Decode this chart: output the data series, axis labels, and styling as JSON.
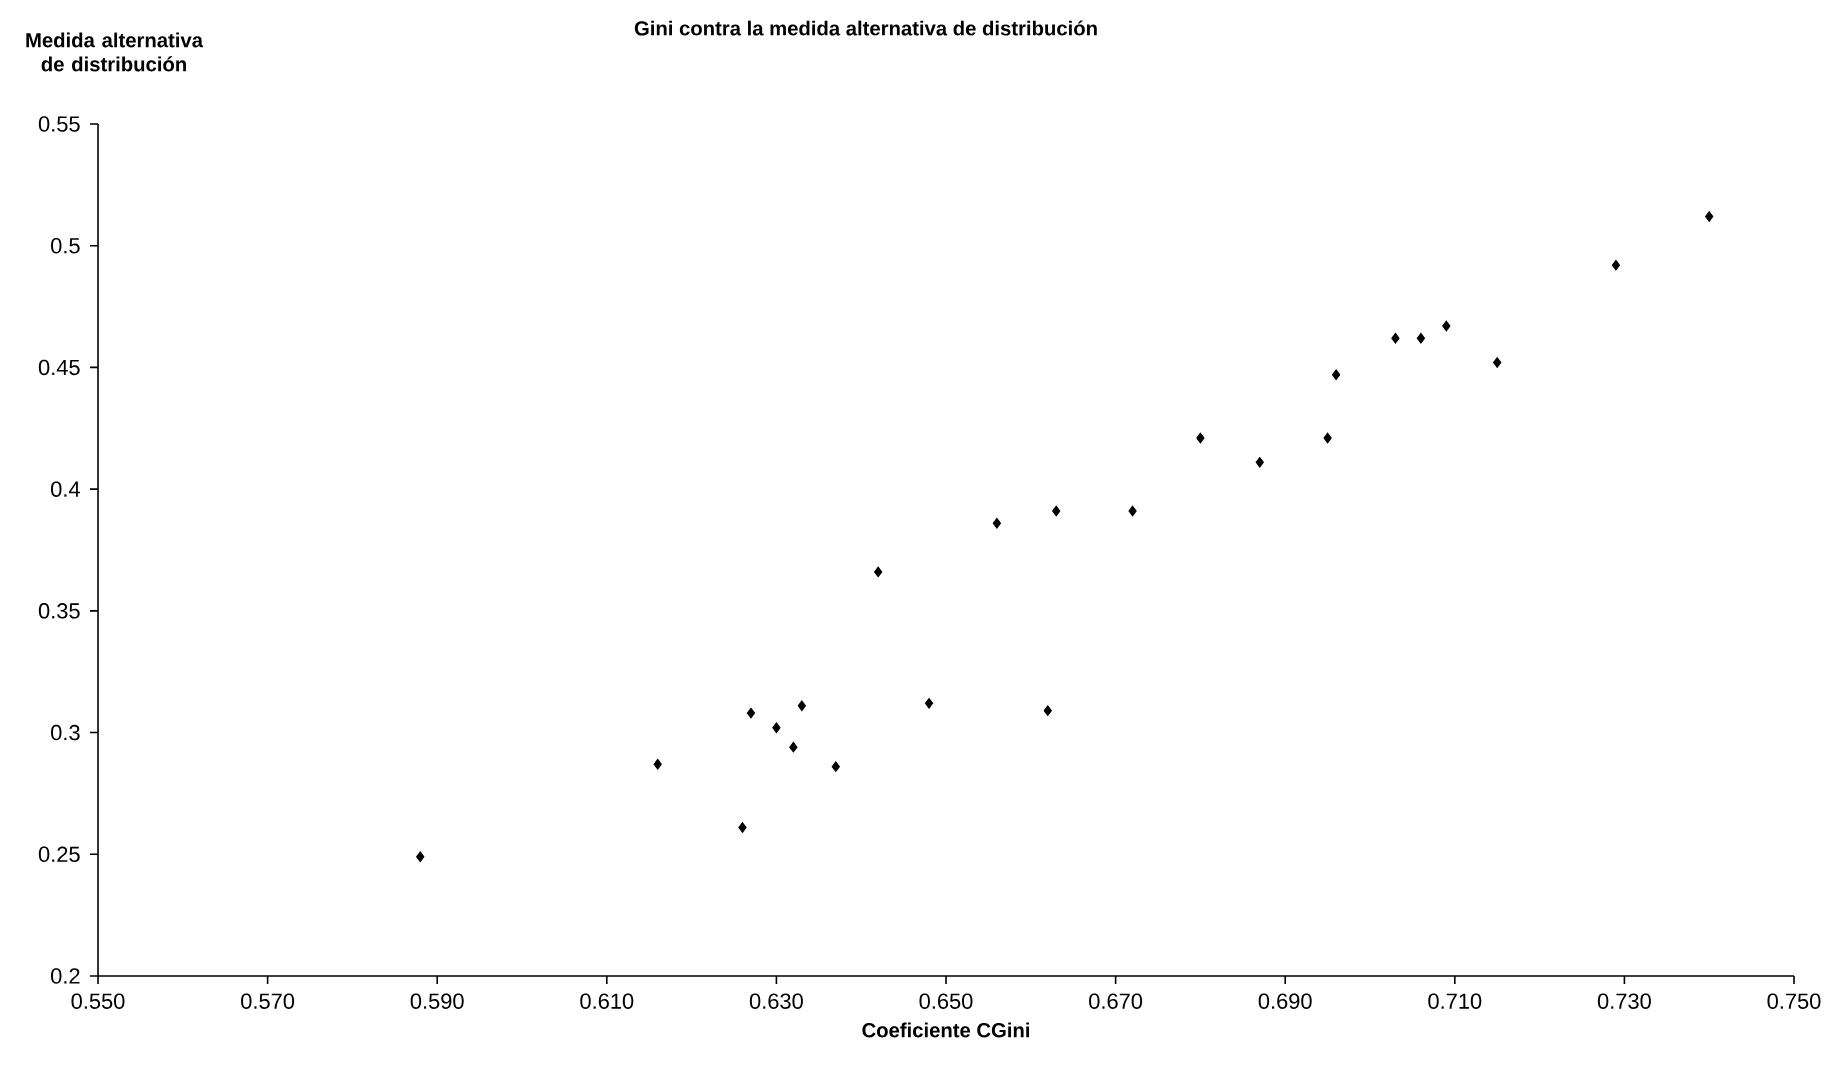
{
  "chart_data": {
    "type": "scatter",
    "title": "Gini contra la medida alternativa de distribución",
    "xlabel": "Coeficiente CGini",
    "ylabel": "Medida alternativa de distribución",
    "x": [
      0.588,
      0.616,
      0.626,
      0.627,
      0.63,
      0.632,
      0.633,
      0.637,
      0.648,
      0.662,
      0.642,
      0.656,
      0.663,
      0.672,
      0.68,
      0.687,
      0.695,
      0.696,
      0.703,
      0.706,
      0.709,
      0.715,
      0.729,
      0.74
    ],
    "values": [
      0.249,
      0.287,
      0.261,
      0.308,
      0.302,
      0.294,
      0.311,
      0.286,
      0.312,
      0.309,
      0.366,
      0.386,
      0.391,
      0.391,
      0.421,
      0.411,
      0.421,
      0.447,
      0.462,
      0.462,
      0.467,
      0.452,
      0.492,
      0.512
    ],
    "color": "#000000",
    "marker": "diamond",
    "grid": false,
    "xlim": [
      0.55,
      0.75
    ],
    "ylim": [
      0.2,
      0.55
    ],
    "xticks": [
      {
        "value": 0.55,
        "label": "0.550"
      },
      {
        "value": 0.57,
        "label": "0.570"
      },
      {
        "value": 0.59,
        "label": "0.590"
      },
      {
        "value": 0.61,
        "label": "0.610"
      },
      {
        "value": 0.63,
        "label": "0.630"
      },
      {
        "value": 0.65,
        "label": "0.650"
      },
      {
        "value": 0.67,
        "label": "0.670"
      },
      {
        "value": 0.69,
        "label": "0.690"
      },
      {
        "value": 0.71,
        "label": "0.710"
      },
      {
        "value": 0.73,
        "label": "0.730"
      },
      {
        "value": 0.75,
        "label": "0.750"
      }
    ],
    "yticks": [
      0.2,
      0.25,
      0.3,
      0.35,
      0.4,
      0.45,
      0.5,
      0.55
    ]
  }
}
